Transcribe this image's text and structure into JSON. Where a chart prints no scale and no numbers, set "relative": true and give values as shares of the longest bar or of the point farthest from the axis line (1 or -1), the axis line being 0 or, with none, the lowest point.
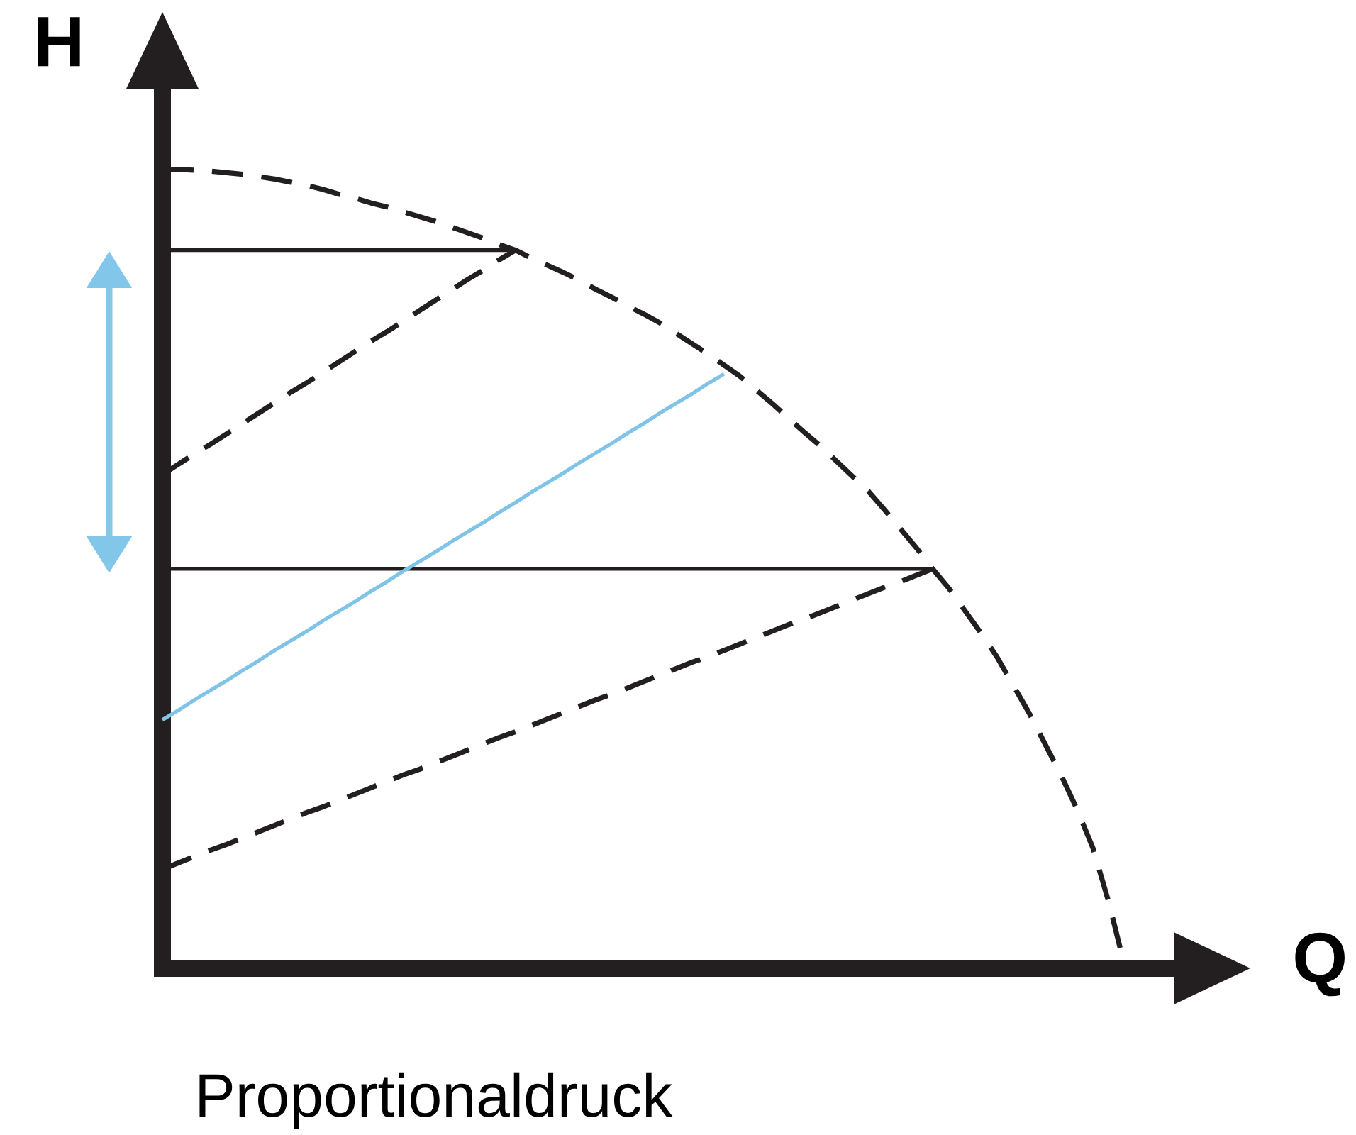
{
  "chart_data": {
    "type": "line",
    "xlabel": "Q",
    "ylabel": "H",
    "relative": true,
    "marker": "none",
    "annotations": [
      "Proportionaldruck"
    ],
    "categories": [
      null,
      null,
      null,
      null,
      null,
      null,
      null,
      null,
      null,
      null,
      null,
      null,
      null,
      null,
      null,
      null,
      null,
      null,
      null,
      null,
      null,
      null,
      null,
      null,
      null,
      null,
      null,
      null,
      null,
      null,
      null,
      null,
      null,
      null,
      null,
      null,
      null,
      null,
      null,
      null,
      null,
      null,
      null,
      null,
      null,
      null,
      null,
      null,
      null,
      null,
      null,
      null,
      null,
      null,
      null,
      null,
      null,
      null,
      null,
      null,
      null
    ],
    "series": [
      {
        "color": "#231f20",
        "line_style": "dashed",
        "values": [
          1.0,
          1.0,
          0.999,
          0.998,
          0.996,
          0.994,
          0.991,
          0.988,
          0.984,
          0.98,
          0.975,
          0.969,
          0.964,
          0.958,
          0.953,
          0.947,
          0.941,
          0.935,
          0.928,
          0.921,
          0.914,
          0.906,
          0.899,
          0.889,
          0.88,
          0.871,
          0.861,
          0.85,
          0.84,
          0.829,
          0.819,
          0.808,
          0.795,
          0.782,
          0.769,
          0.755,
          0.741,
          0.724,
          0.707,
          0.689,
          0.671,
          0.654,
          0.635,
          0.616,
          0.597,
          0.574,
          0.55,
          0.526,
          0.5,
          0.476,
          0.448,
          0.42,
          0.39,
          0.355,
          0.32,
          0.281,
          0.242,
          0.199,
          0.15,
          0.081,
          0
        ]
      },
      {
        "color": "#231f20",
        "line_style": "solid",
        "values": [
          0.899,
          0.899,
          0.899,
          0.899,
          0.899,
          0.899,
          0.899,
          0.899,
          0.899,
          0.899,
          0.899,
          0.899,
          0.899,
          0.899,
          0.899,
          0.899,
          0.899,
          0.899,
          0.899,
          0.899,
          0.899,
          0.899,
          0.899,
          null,
          null,
          null,
          null,
          null,
          null,
          null,
          null,
          null,
          null,
          null,
          null,
          null,
          null,
          null,
          null,
          null,
          null,
          null,
          null,
          null,
          null,
          null,
          null,
          null,
          null,
          null,
          null,
          null,
          null,
          null,
          null,
          null,
          null,
          null,
          null,
          null,
          null
        ]
      },
      {
        "color": "#231f20",
        "line_style": "dashed",
        "values": [
          0.618,
          0.631,
          0.644,
          0.656,
          0.669,
          0.682,
          0.695,
          0.708,
          0.721,
          0.733,
          0.746,
          0.759,
          0.772,
          0.785,
          0.797,
          0.81,
          0.823,
          0.836,
          0.849,
          0.862,
          0.874,
          0.887,
          0.899,
          null,
          null,
          null,
          null,
          null,
          null,
          null,
          null,
          null,
          null,
          null,
          null,
          null,
          null,
          null,
          null,
          null,
          null,
          null,
          null,
          null,
          null,
          null,
          null,
          null,
          null,
          null,
          null,
          null,
          null,
          null,
          null,
          null,
          null,
          null,
          null,
          null,
          null
        ]
      },
      {
        "color": "#231f20",
        "line_style": "solid",
        "values": [
          0.5,
          0.5,
          0.5,
          0.5,
          0.5,
          0.5,
          0.5,
          0.5,
          0.5,
          0.5,
          0.5,
          0.5,
          0.5,
          0.5,
          0.5,
          0.5,
          0.5,
          0.5,
          0.5,
          0.5,
          0.5,
          0.5,
          0.5,
          0.5,
          0.5,
          0.5,
          0.5,
          0.5,
          0.5,
          0.5,
          0.5,
          0.5,
          0.5,
          0.5,
          0.5,
          0.5,
          0.5,
          0.5,
          0.5,
          0.5,
          0.5,
          0.5,
          0.5,
          0.5,
          0.5,
          0.5,
          0.5,
          0.5,
          0.5,
          null,
          null,
          null,
          null,
          null,
          null,
          null,
          null,
          null,
          null,
          null,
          null
        ]
      },
      {
        "color": "#231f20",
        "line_style": "dashed",
        "values": [
          0.124,
          0.132,
          0.14,
          0.148,
          0.155,
          0.163,
          0.171,
          0.179,
          0.187,
          0.195,
          0.202,
          0.21,
          0.218,
          0.226,
          0.234,
          0.242,
          0.249,
          0.257,
          0.265,
          0.273,
          0.281,
          0.289,
          0.296,
          0.304,
          0.312,
          0.32,
          0.328,
          0.336,
          0.343,
          0.351,
          0.359,
          0.367,
          0.375,
          0.383,
          0.39,
          0.398,
          0.406,
          0.414,
          0.422,
          0.43,
          0.437,
          0.445,
          0.453,
          0.461,
          0.469,
          0.477,
          0.484,
          0.492,
          0.5,
          null,
          null,
          null,
          null,
          null,
          null,
          null,
          null,
          null,
          null,
          null,
          null
        ]
      },
      {
        "color": "#7fc4e8",
        "line_style": "solid",
        "values": [
          0.311,
          0.323,
          0.336,
          0.348,
          0.36,
          0.373,
          0.385,
          0.398,
          0.41,
          0.422,
          0.435,
          0.447,
          0.459,
          0.472,
          0.484,
          0.497,
          0.509,
          0.521,
          0.534,
          0.546,
          0.558,
          0.571,
          0.583,
          0.596,
          0.608,
          0.62,
          0.633,
          0.645,
          0.657,
          0.67,
          0.682,
          0.695,
          0.707,
          0.719,
          0.732,
          0.744,
          null,
          null,
          null,
          null,
          null,
          null,
          null,
          null,
          null,
          null,
          null,
          null,
          null,
          null,
          null,
          null,
          null,
          null,
          null,
          null,
          null,
          null,
          null,
          null,
          null
        ]
      }
    ]
  }
}
